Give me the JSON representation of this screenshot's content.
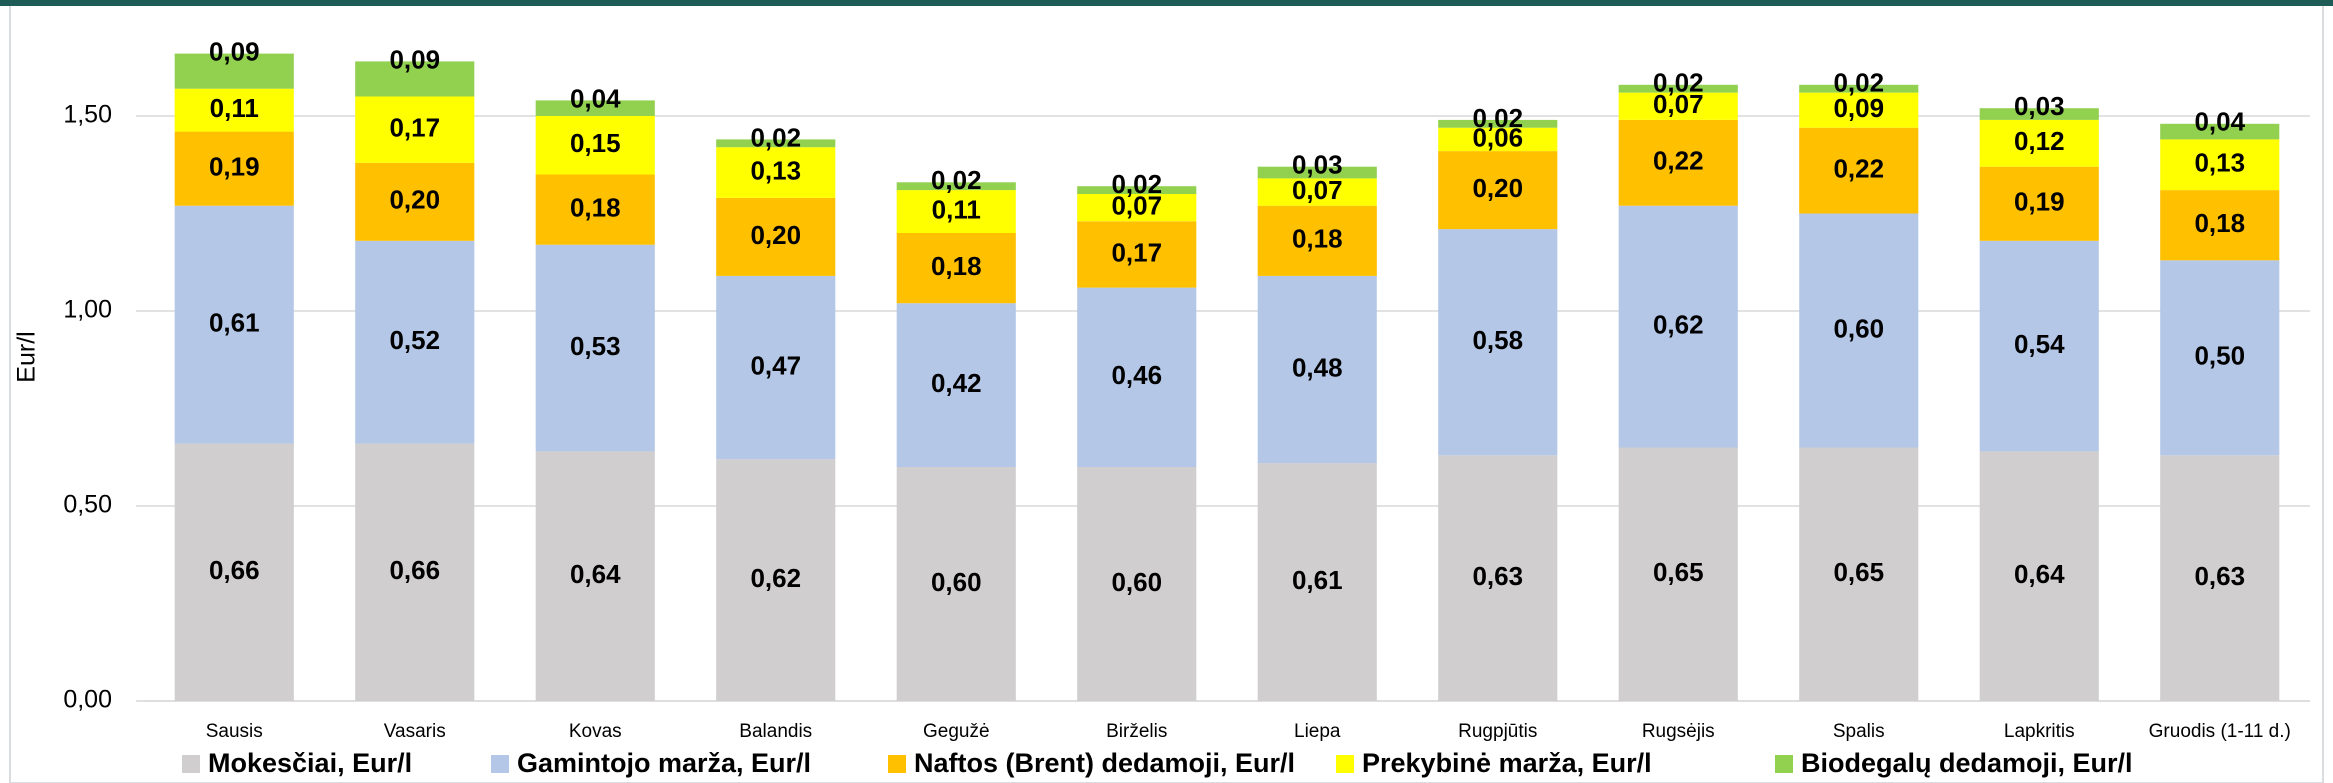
{
  "chart_data": {
    "type": "bar",
    "stacked": true,
    "ylabel": "Eur/l",
    "categories": [
      "Sausis",
      "Vasaris",
      "Kovas",
      "Balandis",
      "Gegužė",
      "Birželis",
      "Liepa",
      "Rugpjūtis",
      "Rugsėjis",
      "Spalis",
      "Lapkritis",
      "Gruodis (1-11 d.)"
    ],
    "series": [
      {
        "name": "Mokesčiai, Eur/l",
        "color": "#d0cece",
        "values": [
          0.66,
          0.66,
          0.64,
          0.62,
          0.6,
          0.6,
          0.61,
          0.63,
          0.65,
          0.65,
          0.64,
          0.63
        ],
        "value_labels": [
          "0,66",
          "0,66",
          "0,64",
          "0,62",
          "0,60",
          "0,60",
          "0,61",
          "0,63",
          "0,65",
          "0,65",
          "0,64",
          "0,63"
        ]
      },
      {
        "name": "Gamintojo marža, Eur/l",
        "color": "#b4c7e7",
        "values": [
          0.61,
          0.52,
          0.53,
          0.47,
          0.42,
          0.46,
          0.48,
          0.58,
          0.62,
          0.6,
          0.54,
          0.5
        ],
        "value_labels": [
          "0,61",
          "0,52",
          "0,53",
          "0,47",
          "0,42",
          "0,46",
          "0,48",
          "0,58",
          "0,62",
          "0,60",
          "0,54",
          "0,50"
        ]
      },
      {
        "name": "Naftos (Brent) dedamoji, Eur/l",
        "color": "#ffc000",
        "values": [
          0.19,
          0.2,
          0.18,
          0.2,
          0.18,
          0.17,
          0.18,
          0.2,
          0.22,
          0.22,
          0.19,
          0.18
        ],
        "value_labels": [
          "0,19",
          "0,20",
          "0,18",
          "0,20",
          "0,18",
          "0,17",
          "0,18",
          "0,20",
          "0,22",
          "0,22",
          "0,19",
          "0,18"
        ]
      },
      {
        "name": "Prekybinė marža, Eur/l",
        "color": "#ffff00",
        "values": [
          0.11,
          0.17,
          0.15,
          0.13,
          0.11,
          0.07,
          0.07,
          0.06,
          0.07,
          0.09,
          0.12,
          0.13
        ],
        "value_labels": [
          "0,11",
          "0,17",
          "0,15",
          "0,13",
          "0,11",
          "0,07",
          "0,07",
          "0,06",
          "0,07",
          "0,09",
          "0,12",
          "0,13"
        ]
      },
      {
        "name": "Biodegalų dedamoji, Eur/l",
        "color": "#92d050",
        "values": [
          0.09,
          0.09,
          0.04,
          0.02,
          0.02,
          0.02,
          0.03,
          0.02,
          0.02,
          0.02,
          0.03,
          0.04
        ],
        "value_labels": [
          "0,09",
          "0,09",
          "0,04",
          "0,02",
          "0,02",
          "0,02",
          "0,03",
          "0,02",
          "0,02",
          "0,02",
          "0,03",
          "0,04"
        ]
      }
    ],
    "ylim": [
      0,
      1.7
    ],
    "yticks": [
      {
        "value": 0,
        "label": "0,00"
      },
      {
        "value": 0.5,
        "label": "0,50"
      },
      {
        "value": 1,
        "label": "1,00"
      },
      {
        "value": 1.5,
        "label": "1,50"
      }
    ],
    "grid": true,
    "legend": "bottom"
  }
}
